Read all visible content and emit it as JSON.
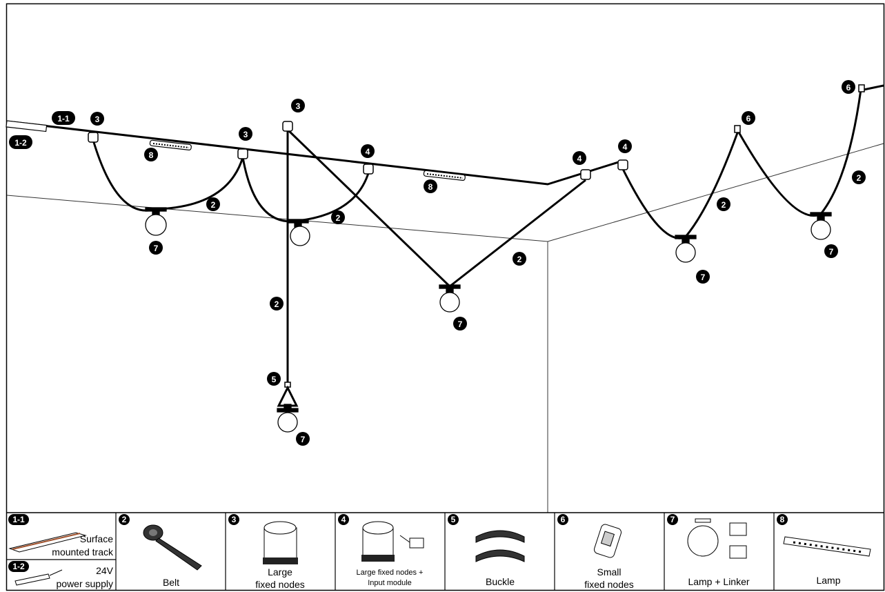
{
  "diagram": {
    "badges": {
      "track": "1-1",
      "power": "1-2",
      "belt": "2",
      "large_node": "3",
      "large_node_input": "4",
      "buckle": "5",
      "small_node": "6",
      "lamp_linker": "7",
      "lamp": "8"
    }
  },
  "legend": {
    "track": {
      "num": "1-1",
      "line1": "Surface",
      "line2": "mounted track"
    },
    "power": {
      "num": "1-2",
      "line1": "24V",
      "line2": "power supply"
    },
    "belt": {
      "num": "2",
      "label": "Belt"
    },
    "large_nodes": {
      "num": "3",
      "line1": "Large",
      "line2": "fixed nodes"
    },
    "large_input": {
      "num": "4",
      "line1": "Large fixed nodes +",
      "line2": "Input module"
    },
    "buckle": {
      "num": "5",
      "label": "Buckle"
    },
    "small_nodes": {
      "num": "6",
      "line1": "Small",
      "line2": "fixed nodes"
    },
    "lamp_linker": {
      "num": "7",
      "label": "Lamp + Linker"
    },
    "lamp": {
      "num": "8",
      "label": "Lamp"
    }
  }
}
